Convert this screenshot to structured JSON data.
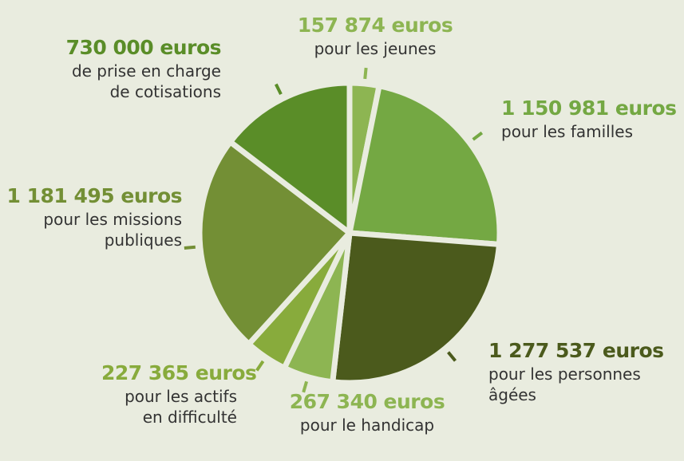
{
  "chart_data": {
    "type": "pie",
    "categories": [
      "pour les jeunes",
      "pour les familles",
      "pour les personnes âgées",
      "pour le handicap",
      "pour les actifs en difficulté",
      "pour les missions publiques",
      "de prise en charge de cotisations"
    ],
    "values": [
      157874,
      1150981,
      1277537,
      267340,
      227365,
      1181495,
      730000
    ],
    "value_labels": [
      "157 874 euros",
      "1 150 981 euros",
      "1 277 537 euros",
      "267 340 euros",
      "227 365 euros",
      "1 181 495 euros",
      "730 000 euros"
    ],
    "colors": [
      "#8db552",
      "#74a843",
      "#4b5a1c",
      "#8db552",
      "#88ab3c",
      "#738f35",
      "#5a8d28"
    ]
  }
}
